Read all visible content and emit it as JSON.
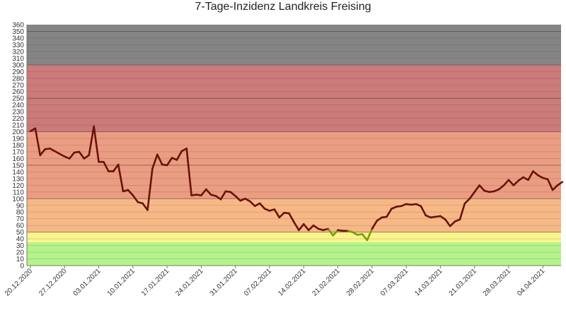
{
  "chart_data": {
    "type": "line",
    "title": "7-Tage-Inzidenz Landkreis Freising",
    "xlabel": "",
    "ylabel": "",
    "ylim": [
      0,
      360
    ],
    "ytick_step": 10,
    "x_start": "20.12.2020",
    "x_end": "07.04.2021",
    "x_ticks": [
      "20.12.2020",
      "27.12.2020",
      "03.01.2021",
      "10.01.2021",
      "17.01.2021",
      "24.01.2021",
      "31.01.2021",
      "07.02.2021",
      "14.02.2021",
      "21.02.2021",
      "28.02.2021",
      "07.03.2021",
      "14.03.2021",
      "21.03.2021",
      "28.03.2021",
      "04.04.2021"
    ],
    "bands": [
      {
        "from": 0,
        "to": 35,
        "color": "#b4f48a"
      },
      {
        "from": 35,
        "to": 50,
        "color": "#fbf58c"
      },
      {
        "from": 50,
        "to": 100,
        "color": "#f7b886"
      },
      {
        "from": 100,
        "to": 200,
        "color": "#eb9d82"
      },
      {
        "from": 200,
        "to": 300,
        "color": "#cc7a7a"
      },
      {
        "from": 300,
        "to": 360,
        "color": "#858585"
      }
    ],
    "grid": true,
    "series": [
      {
        "color_above_50": "#6b1208",
        "color_below_50": "#7a9a10",
        "values": [
          [
            "20.12.2020",
            201
          ],
          [
            "21.12.2020",
            205
          ],
          [
            "22.12.2020",
            165
          ],
          [
            "23.12.2020",
            174
          ],
          [
            "24.12.2020",
            175
          ],
          [
            "27.12.2020",
            163
          ],
          [
            "28.12.2020",
            160
          ],
          [
            "29.12.2020",
            169
          ],
          [
            "30.12.2020",
            170
          ],
          [
            "31.12.2020",
            160
          ],
          [
            "01.01.2021",
            165
          ],
          [
            "02.01.2021",
            208
          ],
          [
            "03.01.2021",
            155
          ],
          [
            "04.01.2021",
            155
          ],
          [
            "05.01.2021",
            141
          ],
          [
            "06.01.2021",
            141
          ],
          [
            "07.01.2021",
            151
          ],
          [
            "08.01.2021",
            111
          ],
          [
            "09.01.2021",
            113
          ],
          [
            "10.01.2021",
            105
          ],
          [
            "11.01.2021",
            95
          ],
          [
            "12.01.2021",
            93
          ],
          [
            "13.01.2021",
            83
          ],
          [
            "14.01.2021",
            145
          ],
          [
            "15.01.2021",
            166
          ],
          [
            "16.01.2021",
            151
          ],
          [
            "17.01.2021",
            150
          ],
          [
            "18.01.2021",
            161
          ],
          [
            "19.01.2021",
            158
          ],
          [
            "20.01.2021",
            171
          ],
          [
            "21.01.2021",
            175
          ],
          [
            "22.01.2021",
            105
          ],
          [
            "23.01.2021",
            106
          ],
          [
            "24.01.2021",
            105
          ],
          [
            "25.01.2021",
            114
          ],
          [
            "26.01.2021",
            106
          ],
          [
            "27.01.2021",
            104
          ],
          [
            "28.01.2021",
            99
          ],
          [
            "29.01.2021",
            111
          ],
          [
            "30.01.2021",
            110
          ],
          [
            "31.01.2021",
            104
          ],
          [
            "01.02.2021",
            97
          ],
          [
            "02.02.2021",
            100
          ],
          [
            "03.02.2021",
            96
          ],
          [
            "04.02.2021",
            89
          ],
          [
            "05.02.2021",
            93
          ],
          [
            "06.02.2021",
            85
          ],
          [
            "07.02.2021",
            82
          ],
          [
            "08.02.2021",
            84
          ],
          [
            "09.02.2021",
            72
          ],
          [
            "10.02.2021",
            79
          ],
          [
            "11.02.2021",
            78
          ],
          [
            "12.02.2021",
            65
          ],
          [
            "13.02.2021",
            53
          ],
          [
            "14.02.2021",
            62
          ],
          [
            "15.02.2021",
            53
          ],
          [
            "16.02.2021",
            60
          ],
          [
            "17.02.2021",
            55
          ],
          [
            "18.02.2021",
            53
          ],
          [
            "19.02.2021",
            55
          ],
          [
            "20.02.2021",
            45
          ],
          [
            "21.02.2021",
            53
          ],
          [
            "22.02.2021",
            52
          ],
          [
            "23.02.2021",
            52
          ],
          [
            "24.02.2021",
            50
          ],
          [
            "25.02.2021",
            46
          ],
          [
            "26.02.2021",
            47
          ],
          [
            "27.02.2021",
            38
          ],
          [
            "28.02.2021",
            55
          ],
          [
            "01.03.2021",
            67
          ],
          [
            "02.03.2021",
            72
          ],
          [
            "03.03.2021",
            73
          ],
          [
            "04.03.2021",
            85
          ],
          [
            "05.03.2021",
            88
          ],
          [
            "06.03.2021",
            89
          ],
          [
            "07.03.2021",
            92
          ],
          [
            "08.03.2021",
            91
          ],
          [
            "09.03.2021",
            92
          ],
          [
            "10.03.2021",
            89
          ],
          [
            "11.03.2021",
            75
          ],
          [
            "12.03.2021",
            72
          ],
          [
            "13.03.2021",
            73
          ],
          [
            "14.03.2021",
            74
          ],
          [
            "15.03.2021",
            69
          ],
          [
            "16.03.2021",
            59
          ],
          [
            "17.03.2021",
            66
          ],
          [
            "18.03.2021",
            69
          ],
          [
            "19.03.2021",
            93
          ],
          [
            "20.03.2021",
            100
          ],
          [
            "21.03.2021",
            110
          ],
          [
            "22.03.2021",
            120
          ],
          [
            "23.03.2021",
            112
          ],
          [
            "24.03.2021",
            110
          ],
          [
            "25.03.2021",
            111
          ],
          [
            "26.03.2021",
            114
          ],
          [
            "27.03.2021",
            120
          ],
          [
            "28.03.2021",
            128
          ],
          [
            "29.03.2021",
            120
          ],
          [
            "30.03.2021",
            127
          ],
          [
            "31.03.2021",
            132
          ],
          [
            "01.04.2021",
            128
          ],
          [
            "02.04.2021",
            141
          ],
          [
            "03.04.2021",
            135
          ],
          [
            "04.04.2021",
            131
          ],
          [
            "05.04.2021",
            129
          ],
          [
            "06.04.2021",
            113
          ],
          [
            "07.04.2021",
            120
          ],
          [
            "08.04.2021",
            125
          ]
        ]
      }
    ]
  }
}
